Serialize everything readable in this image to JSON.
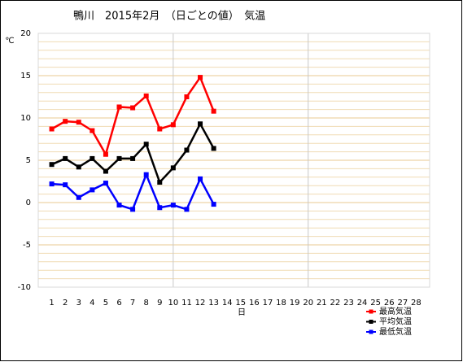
{
  "chart_data": {
    "type": "line",
    "title": "鴨川　2015年2月　（日ごとの値）　気温",
    "y_label": "℃",
    "x_label": "日",
    "x": [
      1,
      2,
      3,
      4,
      5,
      6,
      7,
      8,
      9,
      10,
      11,
      12,
      13
    ],
    "xlim": [
      0,
      29
    ],
    "xticks": [
      1,
      2,
      3,
      4,
      5,
      6,
      7,
      8,
      9,
      10,
      11,
      12,
      13,
      14,
      15,
      16,
      17,
      18,
      19,
      20,
      21,
      22,
      23,
      24,
      25,
      26,
      27,
      28
    ],
    "vlines": [
      10,
      20
    ],
    "ylim": [
      -10,
      20
    ],
    "yticks": [
      -10,
      -5,
      0,
      5,
      10,
      15,
      20
    ],
    "minor_grid_step": 1,
    "grid": true,
    "legend": "lower right",
    "series": [
      {
        "name": "最高気温",
        "color": "#ff0000",
        "values": [
          8.7,
          9.6,
          9.5,
          8.5,
          5.7,
          11.3,
          11.2,
          12.6,
          8.7,
          9.2,
          12.5,
          14.8,
          10.8
        ]
      },
      {
        "name": "平均気温",
        "color": "#000000",
        "values": [
          4.5,
          5.2,
          4.2,
          5.2,
          3.7,
          5.2,
          5.2,
          6.9,
          2.4,
          4.1,
          6.2,
          9.3,
          6.4
        ]
      },
      {
        "name": "最低気温",
        "color": "#0000ff",
        "values": [
          2.2,
          2.1,
          0.6,
          1.5,
          2.3,
          -0.3,
          -0.8,
          3.3,
          -0.6,
          -0.3,
          -0.8,
          2.8,
          -0.2
        ]
      }
    ]
  }
}
